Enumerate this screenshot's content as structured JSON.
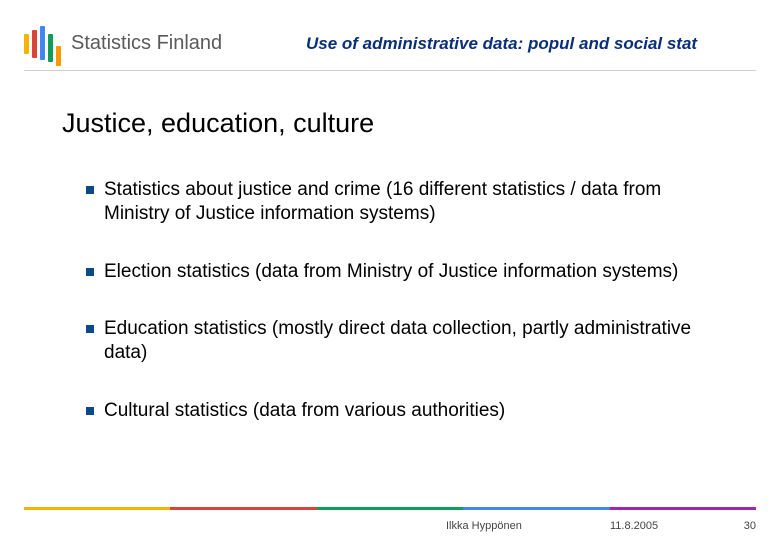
{
  "header": {
    "org_name": "Statistics Finland",
    "title": "Use of administrative data: popul and social stat",
    "title_color": "#0a2f7a",
    "underline_color": "#d0d0d0",
    "logo_bar_colors": [
      "#f4b400",
      "#db4437",
      "#4285f4",
      "#0f9d58",
      "#ff9800"
    ]
  },
  "title": {
    "text": "Justice, education, culture",
    "fontsize": 27
  },
  "bullets": {
    "marker_color": "#0a4a8a",
    "items": [
      "Statistics about justice and crime (16 different statistics / data from Ministry of Justice information systems)",
      "Election statistics (data from Ministry of Justice information systems)",
      "Education statistics (mostly direct data collection, partly administrative data)",
      "Cultural statistics (data from various authorities)"
    ]
  },
  "footer": {
    "stripe_colors": [
      "#f4b400",
      "#db4437",
      "#0f9d58",
      "#4285f4",
      "#9c27b0"
    ],
    "author": "Ilkka Hyppönen",
    "date": "11.8.2005",
    "page": "30"
  },
  "background_color": "#ffffff"
}
